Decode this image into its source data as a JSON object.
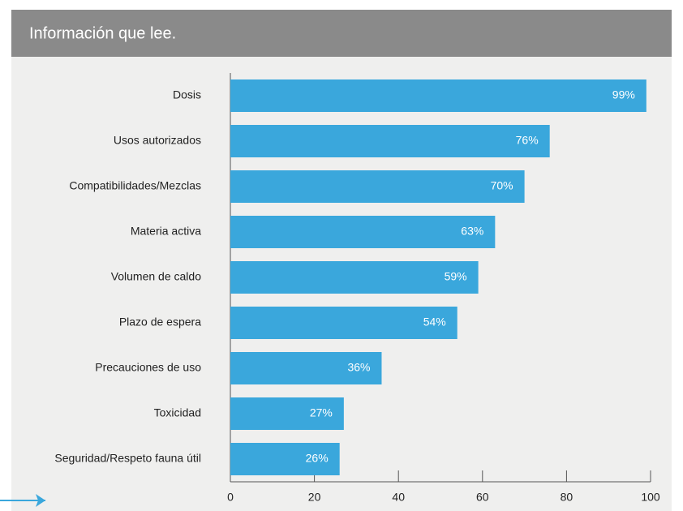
{
  "chart_data": {
    "type": "bar",
    "orientation": "horizontal",
    "title": "Información que lee.",
    "categories": [
      "Dosis",
      "Usos autorizados",
      "Compatibilidades/Mezclas",
      "Materia activa",
      "Volumen de caldo",
      "Plazo de espera",
      "Precauciones de uso",
      "Toxicidad",
      "Seguridad/Respeto fauna útil"
    ],
    "values": [
      99,
      76,
      70,
      63,
      59,
      54,
      36,
      27,
      26
    ],
    "value_labels": [
      "99%",
      "76%",
      "70%",
      "63%",
      "59%",
      "54%",
      "36%",
      "27%",
      "26%"
    ],
    "color": "#3aa7dc",
    "xlim": [
      0,
      100
    ],
    "xticks": [
      0,
      20,
      40,
      60,
      80,
      100
    ],
    "grid": false
  }
}
